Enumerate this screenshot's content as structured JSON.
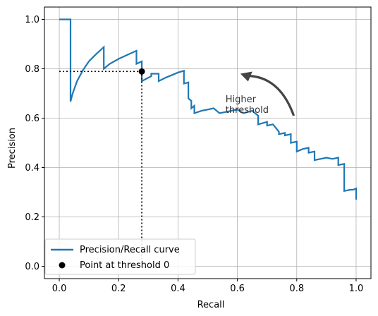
{
  "chart_data": {
    "type": "line",
    "xlabel": "Recall",
    "ylabel": "Precision",
    "xlim": [
      -0.05,
      1.05
    ],
    "ylim": [
      -0.05,
      1.05
    ],
    "grid": true,
    "legend_position": "lower-left",
    "x_ticks": [
      "0.0",
      "0.2",
      "0.4",
      "0.6",
      "0.8",
      "1.0"
    ],
    "y_ticks": [
      "0.0",
      "0.2",
      "0.4",
      "0.6",
      "0.8",
      "1.0"
    ],
    "x_tick_values": [
      0,
      0.2,
      0.4,
      0.6,
      0.8,
      1.0
    ],
    "y_tick_values": [
      0,
      0.2,
      0.4,
      0.6,
      0.8,
      1.0
    ],
    "series": [
      {
        "name": "Precision/Recall curve",
        "color": "#1f77b4",
        "x": [
          0.0,
          0.038,
          0.038,
          0.045,
          0.06,
          0.08,
          0.1,
          0.12,
          0.15,
          0.15,
          0.17,
          0.2,
          0.23,
          0.26,
          0.26,
          0.278,
          0.278,
          0.31,
          0.31,
          0.335,
          0.335,
          0.36,
          0.4,
          0.42,
          0.42,
          0.435,
          0.435,
          0.445,
          0.445,
          0.455,
          0.455,
          0.48,
          0.5,
          0.52,
          0.54,
          0.56,
          0.58,
          0.6,
          0.62,
          0.65,
          0.67,
          0.67,
          0.7,
          0.7,
          0.72,
          0.74,
          0.74,
          0.76,
          0.76,
          0.78,
          0.78,
          0.8,
          0.8,
          0.82,
          0.84,
          0.84,
          0.86,
          0.86,
          0.88,
          0.9,
          0.92,
          0.94,
          0.94,
          0.96,
          0.96,
          0.98,
          0.99,
          1.0,
          1.0
        ],
        "y": [
          1.0,
          1.0,
          0.667,
          0.7,
          0.75,
          0.795,
          0.83,
          0.855,
          0.888,
          0.8,
          0.82,
          0.84,
          0.857,
          0.873,
          0.82,
          0.83,
          0.75,
          0.77,
          0.78,
          0.78,
          0.75,
          0.765,
          0.785,
          0.792,
          0.74,
          0.745,
          0.68,
          0.67,
          0.64,
          0.65,
          0.62,
          0.63,
          0.635,
          0.64,
          0.62,
          0.625,
          0.63,
          0.635,
          0.62,
          0.63,
          0.61,
          0.575,
          0.585,
          0.57,
          0.575,
          0.545,
          0.535,
          0.54,
          0.53,
          0.535,
          0.5,
          0.505,
          0.465,
          0.475,
          0.48,
          0.46,
          0.465,
          0.43,
          0.435,
          0.44,
          0.435,
          0.44,
          0.41,
          0.415,
          0.305,
          0.31,
          0.31,
          0.315,
          0.27
        ]
      }
    ],
    "threshold_point": {
      "name": "Point at threshold 0",
      "x": 0.278,
      "y": 0.789,
      "color": "#000000"
    },
    "annotation": {
      "text_line1": "Higher",
      "text_line2": "threshold",
      "text_x": 0.56,
      "text_y": 0.665,
      "arrow_from": [
        0.79,
        0.61
      ],
      "arrow_to": [
        0.61,
        0.78
      ]
    }
  }
}
